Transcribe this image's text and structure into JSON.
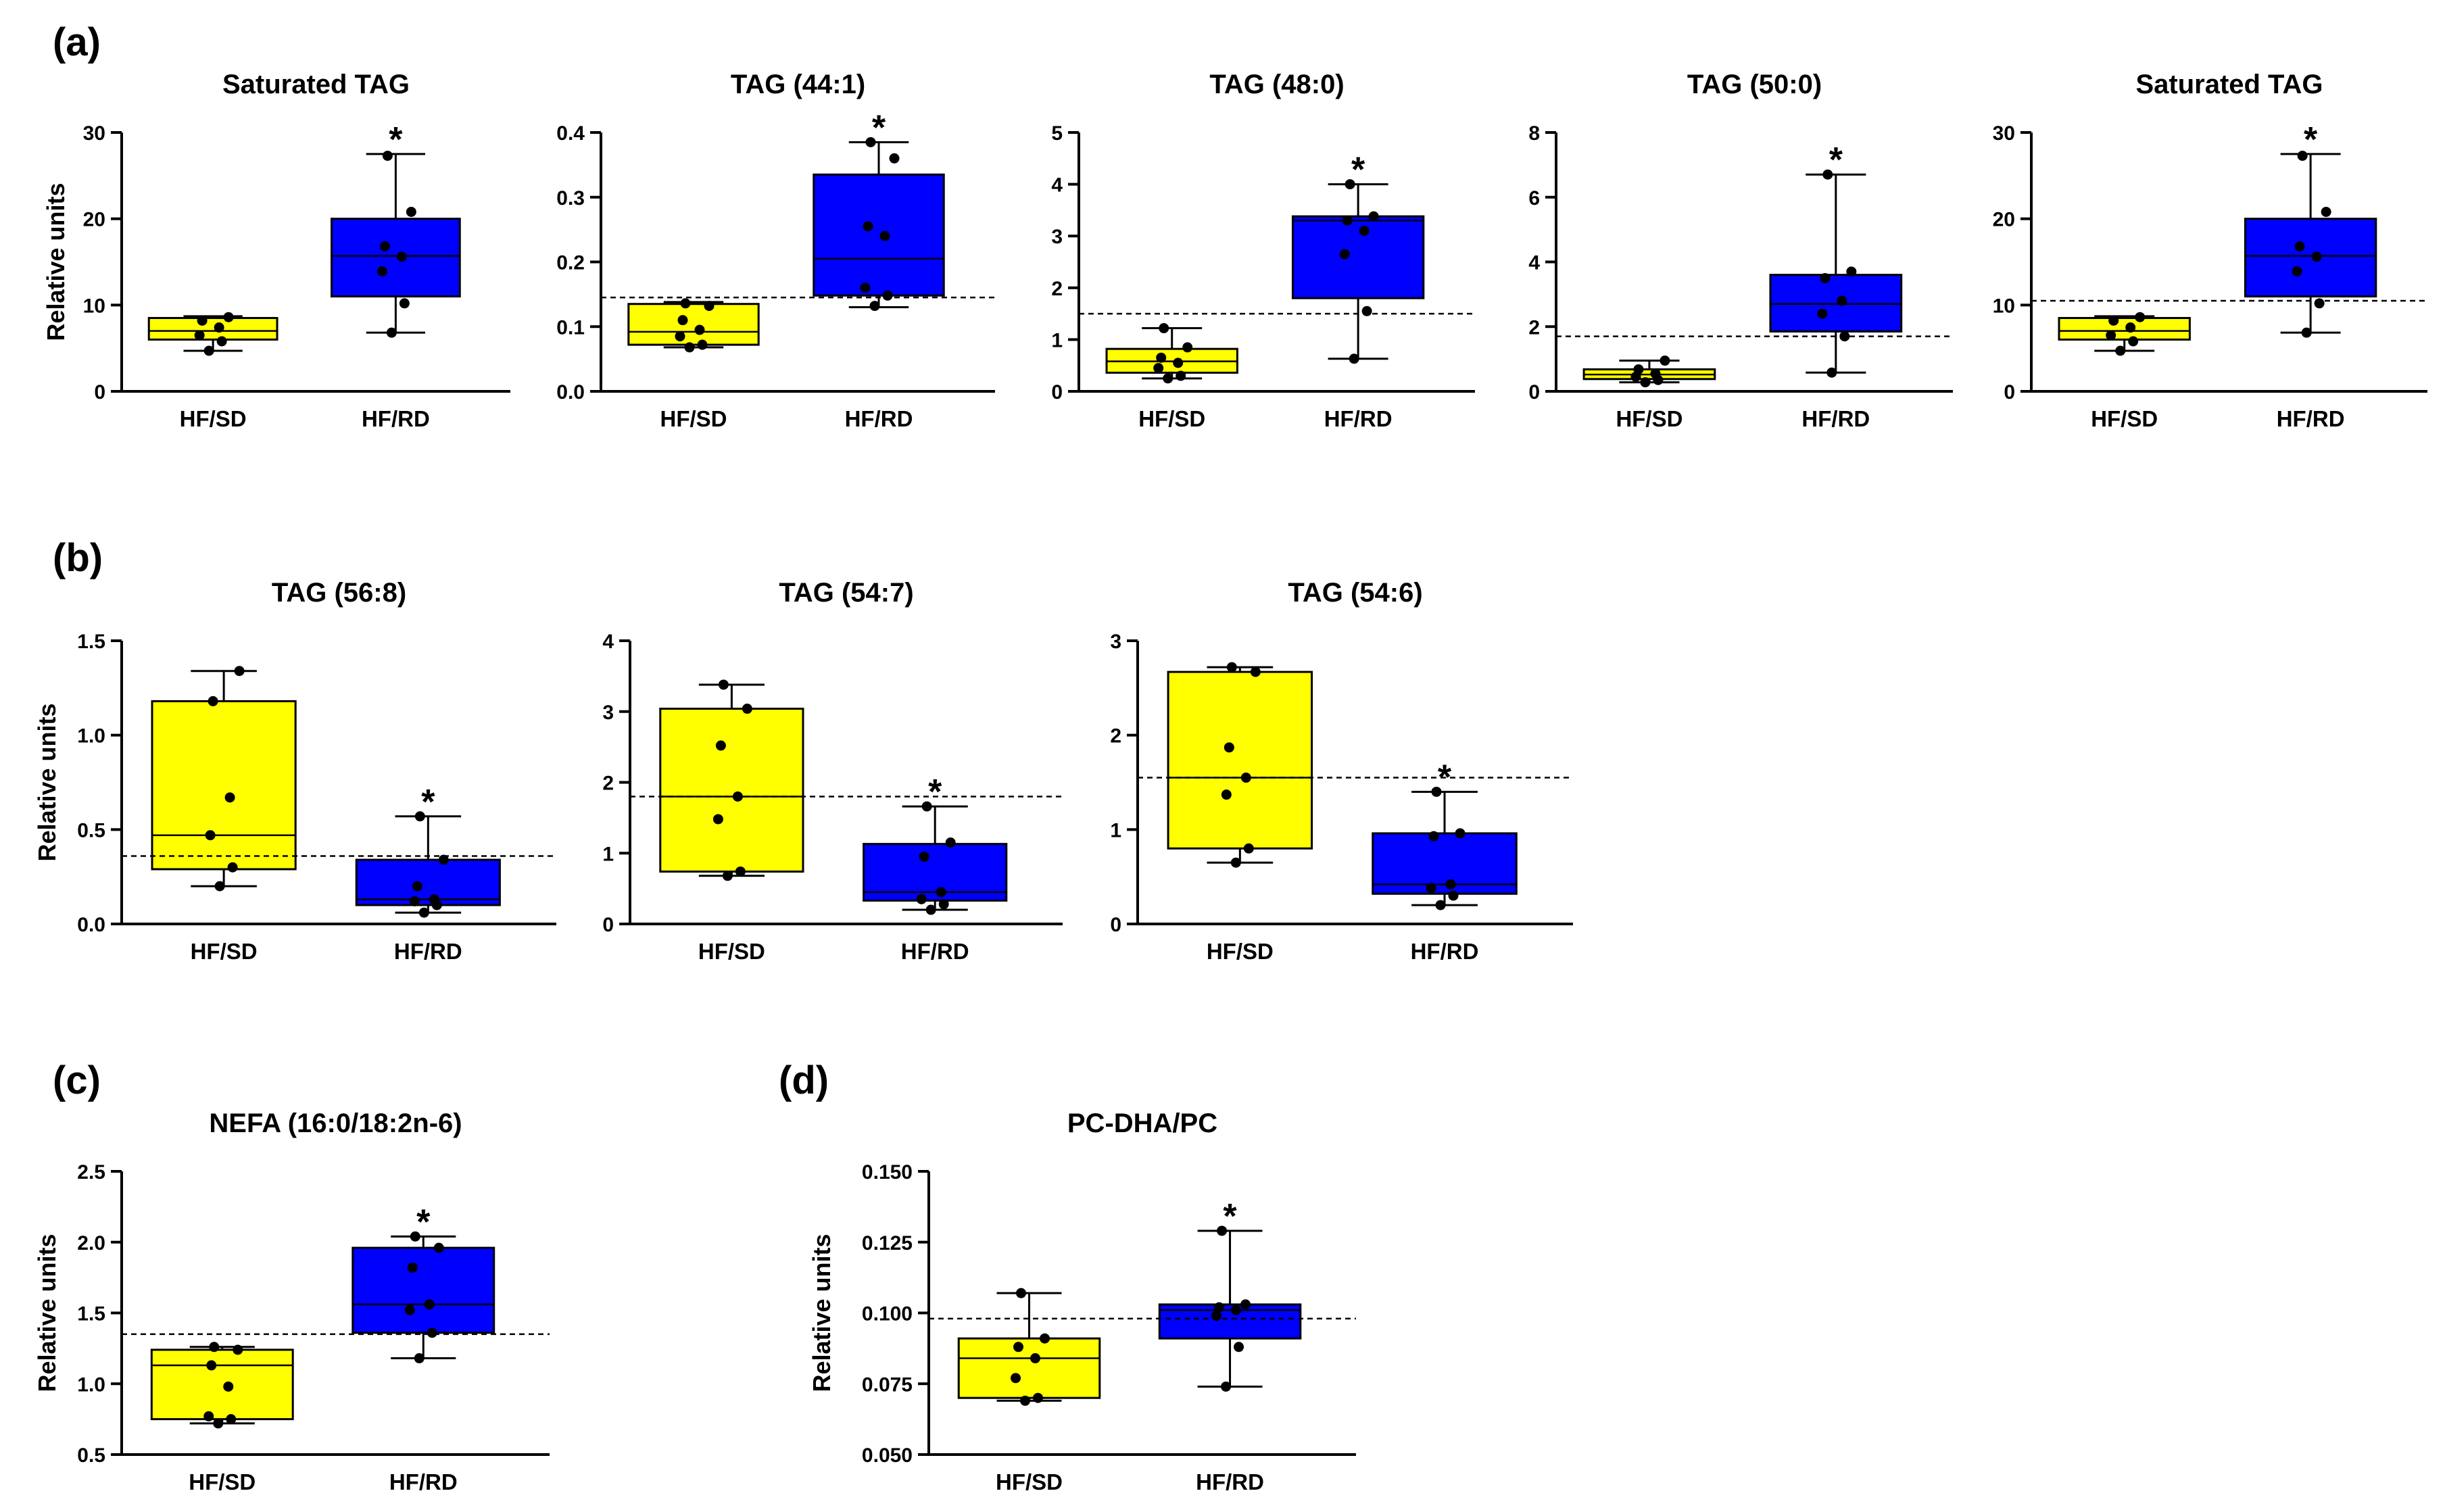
{
  "figure": {
    "panels": [
      {
        "id": "a",
        "label": "(a)"
      },
      {
        "id": "b",
        "label": "(b)"
      },
      {
        "id": "c",
        "label": "(c)"
      },
      {
        "id": "d",
        "label": "(d)"
      }
    ],
    "colors": {
      "HF/SD": "#ffff00",
      "HF/RD": "#0000ff",
      "axis": "#000000"
    }
  },
  "chart_data": [
    {
      "type": "box",
      "panel": "a",
      "title": "Saturated TAG",
      "ylabel": "Relative units",
      "ylim": [
        0,
        30
      ],
      "yticks": [
        "0",
        "10",
        "20",
        "30"
      ],
      "reference_line": 0,
      "categories": [
        "HF/SD",
        "HF/RD"
      ],
      "boxes": [
        {
          "name": "HF/SD",
          "color": "#ffff00",
          "min": 4.7,
          "q1": 6.0,
          "median": 7.0,
          "q3": 8.5,
          "max": 8.7,
          "points": [
            4.7,
            5.8,
            6.5,
            7.4,
            8.2,
            8.6
          ],
          "significant": false
        },
        {
          "name": "HF/RD",
          "color": "#0000ff",
          "min": 6.8,
          "q1": 11.0,
          "median": 15.7,
          "q3": 20.0,
          "max": 27.5,
          "points": [
            6.8,
            10.2,
            13.9,
            15.6,
            16.8,
            20.8,
            27.3
          ],
          "significant": true
        }
      ],
      "significance": "*"
    },
    {
      "type": "box",
      "panel": "a",
      "title": "TAG (44:1)",
      "ylabel": "",
      "ylim": [
        0,
        0.4
      ],
      "yticks": [
        "0.0",
        "0.1",
        "0.2",
        "0.3",
        "0.4"
      ],
      "reference_line": 0.145,
      "categories": [
        "HF/SD",
        "HF/RD"
      ],
      "boxes": [
        {
          "name": "HF/SD",
          "color": "#ffff00",
          "min": 0.068,
          "q1": 0.072,
          "median": 0.092,
          "q3": 0.135,
          "max": 0.138,
          "points": [
            0.068,
            0.072,
            0.085,
            0.095,
            0.11,
            0.132,
            0.136
          ],
          "significant": false
        },
        {
          "name": "HF/RD",
          "color": "#0000ff",
          "min": 0.13,
          "q1": 0.148,
          "median": 0.205,
          "q3": 0.335,
          "max": 0.385,
          "points": [
            0.132,
            0.148,
            0.16,
            0.24,
            0.255,
            0.36,
            0.385
          ],
          "significant": true
        }
      ],
      "significance": "*"
    },
    {
      "type": "box",
      "panel": "a",
      "title": "TAG (48:0)",
      "ylabel": "",
      "ylim": [
        0,
        5
      ],
      "yticks": [
        "0",
        "1",
        "2",
        "3",
        "4",
        "5"
      ],
      "reference_line": 1.5,
      "categories": [
        "HF/SD",
        "HF/RD"
      ],
      "boxes": [
        {
          "name": "HF/SD",
          "color": "#ffff00",
          "min": 0.25,
          "q1": 0.36,
          "median": 0.58,
          "q3": 0.82,
          "max": 1.22,
          "points": [
            0.25,
            0.3,
            0.45,
            0.55,
            0.65,
            0.85,
            1.22
          ],
          "significant": false
        },
        {
          "name": "HF/RD",
          "color": "#0000ff",
          "min": 0.63,
          "q1": 1.8,
          "median": 3.3,
          "q3": 3.38,
          "max": 4.0,
          "points": [
            0.63,
            1.55,
            2.65,
            3.1,
            3.3,
            3.38,
            4.0
          ],
          "significant": true
        }
      ],
      "significance": "*"
    },
    {
      "type": "box",
      "panel": "a",
      "title": "TAG (50:0)",
      "ylabel": "",
      "ylim": [
        0,
        8
      ],
      "yticks": [
        "0",
        "2",
        "4",
        "6",
        "8"
      ],
      "reference_line": 1.7,
      "categories": [
        "HF/SD",
        "HF/RD"
      ],
      "boxes": [
        {
          "name": "HF/SD",
          "color": "#ffff00",
          "min": 0.28,
          "q1": 0.38,
          "median": 0.52,
          "q3": 0.68,
          "max": 0.95,
          "points": [
            0.28,
            0.35,
            0.45,
            0.55,
            0.68,
            0.95
          ],
          "significant": false
        },
        {
          "name": "HF/RD",
          "color": "#0000ff",
          "min": 0.58,
          "q1": 1.85,
          "median": 2.7,
          "q3": 3.6,
          "max": 6.7,
          "points": [
            0.58,
            1.7,
            2.4,
            2.8,
            3.5,
            3.7,
            6.7
          ],
          "significant": true
        }
      ],
      "significance": "*"
    },
    {
      "type": "box",
      "panel": "a",
      "title": "Saturated TAG",
      "ylabel": "",
      "ylim": [
        0,
        30
      ],
      "yticks": [
        "0",
        "10",
        "20",
        "30"
      ],
      "reference_line": 10.5,
      "categories": [
        "HF/SD",
        "HF/RD"
      ],
      "boxes": [
        {
          "name": "HF/SD",
          "color": "#ffff00",
          "min": 4.7,
          "q1": 6.0,
          "median": 7.0,
          "q3": 8.5,
          "max": 8.7,
          "points": [
            4.7,
            5.8,
            6.5,
            7.4,
            8.2,
            8.6
          ],
          "significant": false
        },
        {
          "name": "HF/RD",
          "color": "#0000ff",
          "min": 6.8,
          "q1": 11.0,
          "median": 15.7,
          "q3": 20.0,
          "max": 27.5,
          "points": [
            6.8,
            10.2,
            13.9,
            15.6,
            16.8,
            20.8,
            27.3
          ],
          "significant": true
        }
      ],
      "significance": "*"
    },
    {
      "type": "box",
      "panel": "b",
      "title": "TAG (56:8)",
      "ylabel": "Relative units",
      "ylim": [
        0,
        1.5
      ],
      "yticks": [
        "0.0",
        "0.5",
        "1.0",
        "1.5"
      ],
      "reference_line": 0.36,
      "categories": [
        "HF/SD",
        "HF/RD"
      ],
      "boxes": [
        {
          "name": "HF/SD",
          "color": "#ffff00",
          "min": 0.2,
          "q1": 0.29,
          "median": 0.47,
          "q3": 1.18,
          "max": 1.34,
          "points": [
            0.2,
            0.3,
            0.47,
            0.67,
            1.18,
            1.34
          ],
          "significant": false
        },
        {
          "name": "HF/RD",
          "color": "#0000ff",
          "min": 0.06,
          "q1": 0.1,
          "median": 0.13,
          "q3": 0.34,
          "max": 0.57,
          "points": [
            0.06,
            0.1,
            0.12,
            0.13,
            0.2,
            0.34,
            0.57
          ],
          "significant": true
        }
      ],
      "significance": "*"
    },
    {
      "type": "box",
      "panel": "b",
      "title": "TAG (54:7)",
      "ylabel": "",
      "ylim": [
        0,
        4
      ],
      "yticks": [
        "0",
        "1",
        "2",
        "3",
        "4"
      ],
      "reference_line": 1.8,
      "categories": [
        "HF/SD",
        "HF/RD"
      ],
      "boxes": [
        {
          "name": "HF/SD",
          "color": "#ffff00",
          "min": 0.68,
          "q1": 0.74,
          "median": 1.8,
          "q3": 3.04,
          "max": 3.38,
          "points": [
            0.68,
            0.74,
            1.48,
            1.8,
            2.52,
            3.04,
            3.38
          ],
          "significant": false
        },
        {
          "name": "HF/RD",
          "color": "#0000ff",
          "min": 0.2,
          "q1": 0.33,
          "median": 0.45,
          "q3": 1.13,
          "max": 1.66,
          "points": [
            0.2,
            0.28,
            0.35,
            0.45,
            0.95,
            1.15,
            1.66
          ],
          "significant": true
        }
      ],
      "significance": "*"
    },
    {
      "type": "box",
      "panel": "b",
      "title": "TAG (54:6)",
      "ylabel": "",
      "ylim": [
        0,
        3
      ],
      "yticks": [
        "0",
        "1",
        "2",
        "3"
      ],
      "reference_line": 1.55,
      "categories": [
        "HF/SD",
        "HF/RD"
      ],
      "boxes": [
        {
          "name": "HF/SD",
          "color": "#ffff00",
          "min": 0.65,
          "q1": 0.8,
          "median": 1.55,
          "q3": 2.67,
          "max": 2.72,
          "points": [
            0.65,
            0.8,
            1.37,
            1.55,
            1.87,
            2.67,
            2.72
          ],
          "significant": false
        },
        {
          "name": "HF/RD",
          "color": "#0000ff",
          "min": 0.2,
          "q1": 0.32,
          "median": 0.42,
          "q3": 0.96,
          "max": 1.4,
          "points": [
            0.2,
            0.3,
            0.38,
            0.42,
            0.93,
            0.96,
            1.4
          ],
          "significant": true
        }
      ],
      "significance": "*"
    },
    {
      "type": "box",
      "panel": "c",
      "title": "NEFA (16:0/18:2n-6)",
      "ylabel": "Relative units",
      "ylim": [
        0.5,
        2.5
      ],
      "yticks": [
        "0.5",
        "1.0",
        "1.5",
        "2.0",
        "2.5"
      ],
      "reference_line": 1.35,
      "categories": [
        "HF/SD",
        "HF/RD"
      ],
      "boxes": [
        {
          "name": "HF/SD",
          "color": "#ffff00",
          "min": 0.72,
          "q1": 0.75,
          "median": 1.13,
          "q3": 1.24,
          "max": 1.26,
          "points": [
            0.72,
            0.75,
            0.77,
            0.98,
            1.13,
            1.24,
            1.26
          ],
          "significant": false
        },
        {
          "name": "HF/RD",
          "color": "#0000ff",
          "min": 1.18,
          "q1": 1.36,
          "median": 1.56,
          "q3": 1.96,
          "max": 2.04,
          "points": [
            1.18,
            1.36,
            1.52,
            1.56,
            1.82,
            1.96,
            2.04
          ],
          "significant": true
        }
      ],
      "significance": "*"
    },
    {
      "type": "box",
      "panel": "d",
      "title": "PC-DHA/PC",
      "ylabel": "Relative units",
      "ylim": [
        0.05,
        0.15
      ],
      "yticks": [
        "0.050",
        "0.075",
        "0.100",
        "0.125",
        "0.150"
      ],
      "reference_line": 0.098,
      "categories": [
        "HF/SD",
        "HF/RD"
      ],
      "boxes": [
        {
          "name": "HF/SD",
          "color": "#ffff00",
          "min": 0.069,
          "q1": 0.07,
          "median": 0.084,
          "q3": 0.091,
          "max": 0.107,
          "points": [
            0.069,
            0.07,
            0.077,
            0.084,
            0.088,
            0.091,
            0.107
          ],
          "significant": false
        },
        {
          "name": "HF/RD",
          "color": "#0000ff",
          "min": 0.074,
          "q1": 0.091,
          "median": 0.101,
          "q3": 0.103,
          "max": 0.129,
          "points": [
            0.074,
            0.088,
            0.099,
            0.101,
            0.102,
            0.103,
            0.129
          ],
          "significant": true
        }
      ],
      "significance": "*"
    }
  ]
}
